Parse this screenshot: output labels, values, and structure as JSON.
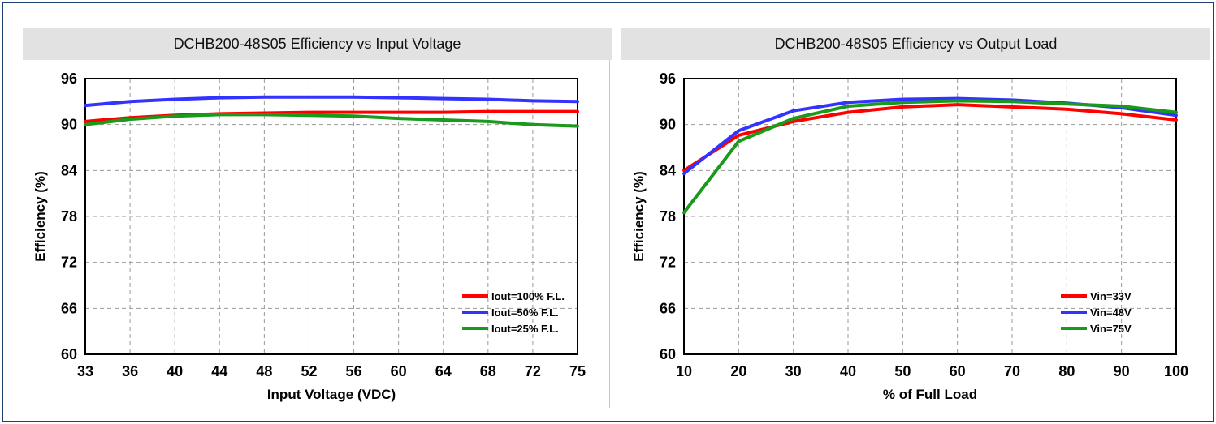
{
  "charts": [
    {
      "title": "DCHB200-48S05 Efficiency vs Input Voltage",
      "chart_data": {
        "type": "line",
        "xlabel": "Input Voltage (VDC)",
        "ylabel": "Efficiency (%)",
        "xticks": [
          "33",
          "36",
          "40",
          "44",
          "48",
          "52",
          "56",
          "60",
          "64",
          "68",
          "72",
          "75"
        ],
        "yticks": [
          60,
          66,
          72,
          78,
          84,
          90,
          96
        ],
        "ylim": [
          60,
          96
        ],
        "grid": true,
        "legend_position": "bottom-right",
        "series": [
          {
            "name": "Iout=100% F.L.",
            "color": "#ff0000",
            "values": [
              90.4,
              90.9,
              91.2,
              91.4,
              91.5,
              91.6,
              91.6,
              91.6,
              91.6,
              91.7,
              91.7,
              91.7
            ]
          },
          {
            "name": "Iout=50% F.L.",
            "color": "#3333ff",
            "values": [
              92.5,
              93.0,
              93.3,
              93.5,
              93.6,
              93.6,
              93.6,
              93.5,
              93.4,
              93.3,
              93.1,
              93.0
            ]
          },
          {
            "name": "Iout=25% F.L.",
            "color": "#1a9a1a",
            "values": [
              90.0,
              90.7,
              91.1,
              91.3,
              91.3,
              91.2,
              91.1,
              90.8,
              90.6,
              90.4,
              90.0,
              89.8
            ]
          }
        ]
      }
    },
    {
      "title": "DCHB200-48S05 Efficiency vs Output Load",
      "chart_data": {
        "type": "line",
        "xlabel": "% of Full Load",
        "ylabel": "Efficiency (%)",
        "xticks": [
          "10",
          "20",
          "30",
          "40",
          "50",
          "60",
          "70",
          "80",
          "90",
          "100"
        ],
        "yticks": [
          60,
          66,
          72,
          78,
          84,
          90,
          96
        ],
        "ylim": [
          60,
          96
        ],
        "grid": true,
        "legend_position": "bottom-right",
        "series": [
          {
            "name": "Vin=33V",
            "color": "#ff0000",
            "values": [
              84.0,
              88.6,
              90.4,
              91.6,
              92.3,
              92.6,
              92.3,
              92.0,
              91.4,
              90.6
            ]
          },
          {
            "name": "Vin=48V",
            "color": "#3333ff",
            "values": [
              83.6,
              89.2,
              91.8,
              92.9,
              93.3,
              93.4,
              93.2,
              92.8,
              92.2,
              91.2
            ]
          },
          {
            "name": "Vin=75V",
            "color": "#1a9a1a",
            "values": [
              78.5,
              87.8,
              90.8,
              92.4,
              92.9,
              93.1,
              93.0,
              92.7,
              92.4,
              91.6
            ]
          }
        ]
      }
    }
  ]
}
